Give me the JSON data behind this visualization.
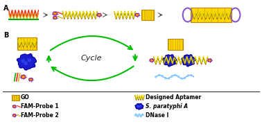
{
  "fig_width": 3.78,
  "fig_height": 1.89,
  "dpi": 100,
  "bg_color": "#ffffff",
  "go_color": "#FFD700",
  "go_edge": "#B8860B",
  "aptamer_colors": [
    "#FF2200",
    "#00AA00",
    "#FFD700"
  ],
  "probe1_dot_color": "#FF8C00",
  "probe1_line_color": "#FF2200",
  "probe2_dot_color": "#FF8C00",
  "probe2_line_color": "#DAA520",
  "bacteria_color": "#1010CC",
  "bacteria_edge": "#000080",
  "ellipse_color": "#8855CC",
  "ellipse_edge": "#6600AA",
  "arrow_color": "#00BB00",
  "dnase_color": "#4488FF",
  "dnase_dot_color": "#88CCFF",
  "cycle_text": "Cycle",
  "label_A": "A",
  "label_B": "B"
}
